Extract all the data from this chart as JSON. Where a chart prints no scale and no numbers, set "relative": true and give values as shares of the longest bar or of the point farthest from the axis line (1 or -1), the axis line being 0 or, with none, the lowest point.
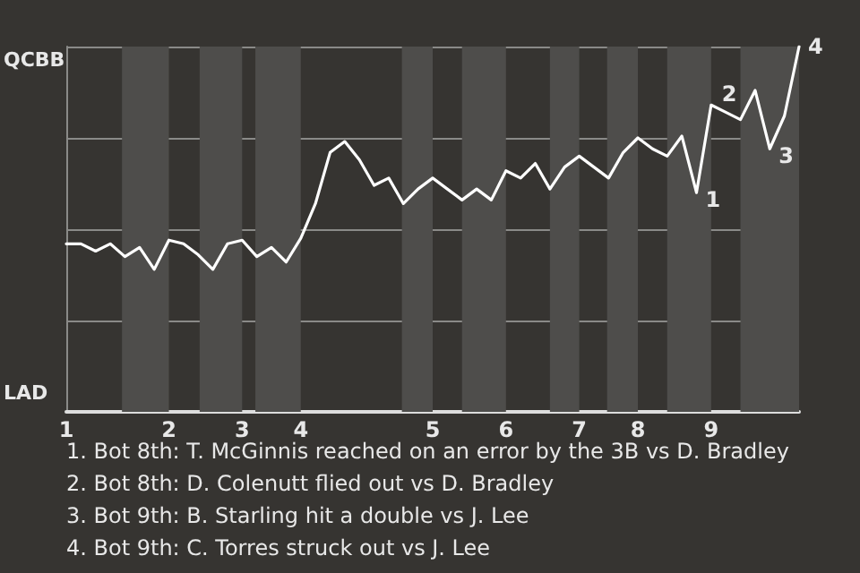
{
  "chart_data": {
    "type": "line",
    "categories": [
      "1",
      null,
      null,
      null,
      null,
      null,
      null,
      "2",
      null,
      null,
      null,
      null,
      "3",
      null,
      null,
      null,
      "4",
      null,
      null,
      null,
      null,
      null,
      null,
      null,
      null,
      "5",
      null,
      null,
      null,
      null,
      "6",
      null,
      null,
      null,
      null,
      "7",
      null,
      null,
      null,
      "8",
      null,
      null,
      null,
      null,
      "9",
      null,
      null,
      null,
      null,
      null,
      null
    ],
    "series": [
      {
        "color": "#ffffff",
        "values": [
          0.46,
          0.46,
          0.44,
          0.46,
          0.425,
          0.45,
          0.39,
          0.47,
          0.46,
          0.43,
          0.39,
          0.46,
          0.47,
          0.425,
          0.45,
          0.41,
          0.475,
          0.57,
          0.71,
          0.74,
          0.69,
          0.62,
          0.64,
          0.57,
          0.61,
          0.64,
          0.61,
          0.58,
          0.61,
          0.58,
          0.66,
          0.64,
          0.68,
          0.61,
          0.67,
          0.7,
          0.67,
          0.64,
          0.71,
          0.75,
          0.72,
          0.7,
          0.755,
          0.6,
          0.84,
          0.82,
          0.8,
          0.88,
          0.72,
          0.81,
          1.0
        ]
      }
    ],
    "relative": true,
    "grid": "y",
    "marker": "none",
    "annotations": [
      "QCBB",
      "LAD",
      "1",
      "2",
      "3",
      "4",
      "1. Bot 8th: T. McGinnis reached on an error by the 3B vs D. Bradley",
      "2. Bot 8th: D. Colenutt flied out vs D. Bradley",
      "3. Bot 9th: B. Starling hit a double vs J. Lee",
      "4. Bot 9th: C. Torres struck out vs J. Lee"
    ]
  }
}
